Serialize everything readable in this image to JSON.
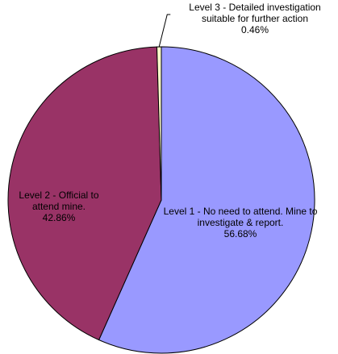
{
  "chart_data": {
    "type": "pie",
    "categories": [
      "Level 1 - No need to attend. Mine to investigate & report.",
      "Level 2 - Official to attend mine.",
      "Level 3 - Detailed investigation suitable for further action"
    ],
    "values": [
      56.68,
      42.86,
      0.46
    ],
    "value_labels": [
      "56.68%",
      "42.86%",
      "0.46%"
    ],
    "colors": [
      "#9999ff",
      "#993366",
      "#ffffcc"
    ]
  }
}
